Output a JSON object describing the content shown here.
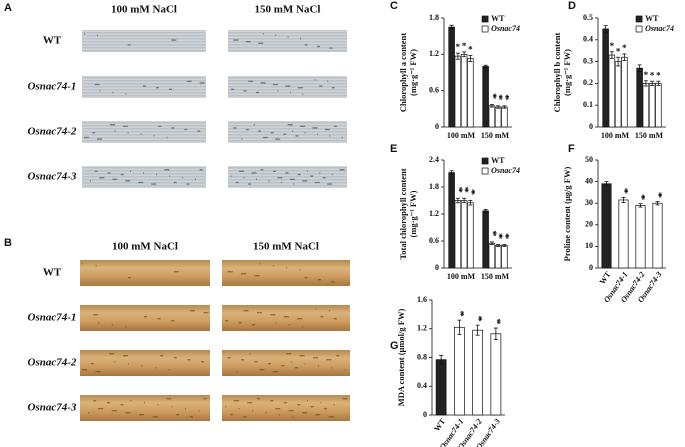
{
  "photo_panels": [
    {
      "label": "A",
      "columns": [
        "100 mM NaCl",
        "150 mM NaCl"
      ],
      "rows": [
        "WT",
        "Osnac74-1",
        "Osnac74-2",
        "Osnac74-3"
      ]
    },
    {
      "label": "B",
      "columns": [
        "100 mM NaCl",
        "150 mM NaCl"
      ],
      "rows": [
        "WT",
        "Osnac74-1",
        "Osnac74-2",
        "Osnac74-3"
      ]
    }
  ],
  "chart_data": [
    {
      "type": "grouped_bar",
      "panel": "C",
      "y_label": [
        "Chlorophyll a content",
        "(mg·g⁻¹ FW)"
      ],
      "categories": [
        "100 mM",
        "150 mM"
      ],
      "ylim": [
        0,
        1.8
      ],
      "yticks": [
        0,
        0.6,
        1.2,
        1.8
      ],
      "series": [
        {
          "name": "WT",
          "color": "#222222",
          "values": [
            1.65,
            1.0
          ],
          "errors": [
            0.03,
            0.02
          ]
        },
        {
          "name": "Osnac74",
          "color": "#ffffff",
          "values": [
            [
              1.17,
              1.2,
              1.13
            ],
            [
              0.35,
              0.33,
              0.33
            ]
          ],
          "errors": [
            [
              0.05,
              0.04,
              0.05
            ],
            [
              0.02,
              0.02,
              0.02
            ]
          ],
          "significance": [
            [
              "*",
              "*",
              "*"
            ],
            [
              "**",
              "**",
              "**"
            ]
          ]
        }
      ]
    },
    {
      "type": "grouped_bar",
      "panel": "D",
      "y_label": [
        "Chlorophyll b content",
        "(mg·g⁻¹ FW)"
      ],
      "categories": [
        "100 mM",
        "150 mM"
      ],
      "ylim": [
        0,
        0.5
      ],
      "yticks": [
        0,
        0.1,
        0.2,
        0.3,
        0.4,
        0.5
      ],
      "series": [
        {
          "name": "WT",
          "color": "#222222",
          "values": [
            0.45,
            0.27
          ],
          "errors": [
            0.015,
            0.015
          ]
        },
        {
          "name": "Osnac74",
          "color": "#ffffff",
          "values": [
            [
              0.33,
              0.3,
              0.32
            ],
            [
              0.2,
              0.2,
              0.2
            ]
          ],
          "errors": [
            [
              0.015,
              0.02,
              0.015
            ],
            [
              0.012,
              0.01,
              0.01
            ]
          ],
          "significance": [
            [
              "*",
              "*",
              "*"
            ],
            [
              "*",
              "*",
              "*"
            ]
          ]
        }
      ]
    },
    {
      "type": "grouped_bar",
      "panel": "E",
      "y_label": [
        "Total chlorophyll content",
        "(mg·g⁻¹ FW)"
      ],
      "categories": [
        "100 mM",
        "150 mM"
      ],
      "ylim": [
        0,
        2.4
      ],
      "yticks": [
        0,
        0.6,
        1.2,
        1.8,
        2.4
      ],
      "series": [
        {
          "name": "WT",
          "color": "#222222",
          "values": [
            2.12,
            1.27
          ],
          "errors": [
            0.04,
            0.03
          ]
        },
        {
          "name": "Osnac74",
          "color": "#ffffff",
          "values": [
            [
              1.5,
              1.5,
              1.45
            ],
            [
              0.55,
              0.5,
              0.5
            ]
          ],
          "errors": [
            [
              0.05,
              0.05,
              0.05
            ],
            [
              0.03,
              0.02,
              0.02
            ]
          ],
          "significance": [
            [
              "**",
              "**",
              "**"
            ],
            [
              "**",
              "**",
              "**"
            ]
          ]
        }
      ]
    },
    {
      "type": "bar",
      "panel": "F",
      "y_label": [
        "Proline content (μg/g FW)"
      ],
      "categories": [
        "WT",
        "Osnac74-1",
        "Osnac74-2",
        "Osnac74-3"
      ],
      "values": [
        39,
        31.5,
        29,
        30
      ],
      "errors": [
        1,
        1.2,
        0.8,
        0.8
      ],
      "colors": [
        "#222222",
        "#ffffff",
        "#ffffff",
        "#ffffff"
      ],
      "significance": [
        null,
        "**",
        "**",
        "**"
      ],
      "ylim": [
        0,
        50
      ],
      "yticks": [
        0,
        10,
        20,
        30,
        40,
        50
      ]
    },
    {
      "type": "bar",
      "panel": "G",
      "y_label": [
        "MDA content (μmol/g FW)"
      ],
      "categories": [
        "WT",
        "Osnac74-1",
        "Osnac74-2",
        "Osnac74-3"
      ],
      "values": [
        0.77,
        1.22,
        1.18,
        1.13
      ],
      "errors": [
        0.06,
        0.1,
        0.07,
        0.08
      ],
      "colors": [
        "#222222",
        "#ffffff",
        "#ffffff",
        "#ffffff"
      ],
      "significance": [
        null,
        "**",
        "**",
        "**"
      ],
      "ylim": [
        0,
        1.6
      ],
      "yticks": [
        0,
        0.4,
        0.8,
        1.2,
        1.6
      ]
    }
  ]
}
